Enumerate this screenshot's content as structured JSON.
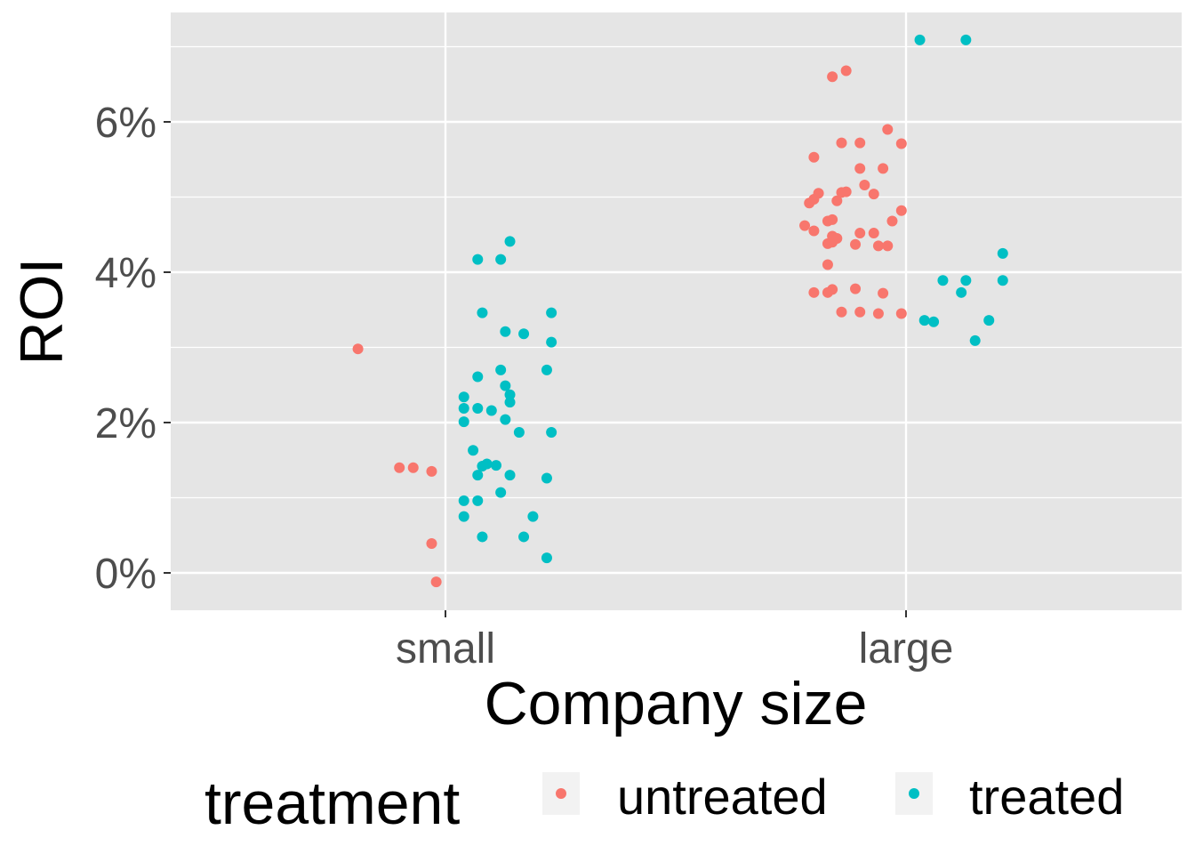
{
  "chart_data": {
    "type": "scatter",
    "title": "",
    "xlabel": "Company size",
    "ylabel": "ROI",
    "categories": [
      "small",
      "large"
    ],
    "ylim": [
      -0.5,
      7.4
    ],
    "y_ticks": [
      0,
      2,
      4,
      6
    ],
    "y_tick_labels": [
      "0%",
      "2%",
      "4%",
      "6%"
    ],
    "grid": true,
    "legend_position": "bottom",
    "legend": {
      "title": "treatment",
      "entries": [
        "untreated",
        "treated"
      ]
    },
    "colors": {
      "untreated": "#f8766d",
      "treated": "#00bfc4",
      "panel": "#e5e5e5",
      "grid": "#ffffff"
    },
    "series": [
      {
        "name": "untreated",
        "points": [
          [
            "small",
            -0.19,
            2.98
          ],
          [
            "small",
            -0.1,
            1.4
          ],
          [
            "small",
            -0.07,
            1.4
          ],
          [
            "small",
            -0.03,
            1.35
          ],
          [
            "small",
            -0.03,
            0.39
          ],
          [
            "small",
            -0.02,
            -0.12
          ],
          [
            "large",
            -0.22,
            4.62
          ],
          [
            "large",
            -0.21,
            4.92
          ],
          [
            "large",
            -0.2,
            4.97
          ],
          [
            "large",
            -0.2,
            5.53
          ],
          [
            "large",
            -0.2,
            4.55
          ],
          [
            "large",
            -0.19,
            5.05
          ],
          [
            "large",
            -0.2,
            3.73
          ],
          [
            "large",
            -0.17,
            4.1
          ],
          [
            "large",
            -0.17,
            4.38
          ],
          [
            "large",
            -0.17,
            4.68
          ],
          [
            "large",
            -0.17,
            3.73
          ],
          [
            "large",
            -0.16,
            4.7
          ],
          [
            "large",
            -0.16,
            6.6
          ],
          [
            "large",
            -0.16,
            4.4
          ],
          [
            "large",
            -0.16,
            4.48
          ],
          [
            "large",
            -0.16,
            3.77
          ],
          [
            "large",
            -0.15,
            4.45
          ],
          [
            "large",
            -0.15,
            4.95
          ],
          [
            "large",
            -0.14,
            5.72
          ],
          [
            "large",
            -0.14,
            5.06
          ],
          [
            "large",
            -0.14,
            3.47
          ],
          [
            "large",
            -0.13,
            6.68
          ],
          [
            "large",
            -0.13,
            5.07
          ],
          [
            "large",
            -0.11,
            4.37
          ],
          [
            "large",
            -0.11,
            3.78
          ],
          [
            "large",
            -0.1,
            5.72
          ],
          [
            "large",
            -0.1,
            5.38
          ],
          [
            "large",
            -0.1,
            4.52
          ],
          [
            "large",
            -0.1,
            3.47
          ],
          [
            "large",
            -0.09,
            5.16
          ],
          [
            "large",
            -0.07,
            4.52
          ],
          [
            "large",
            -0.07,
            5.04
          ],
          [
            "large",
            -0.06,
            4.35
          ],
          [
            "large",
            -0.05,
            5.38
          ],
          [
            "large",
            -0.05,
            3.72
          ],
          [
            "large",
            -0.04,
            5.9
          ],
          [
            "large",
            -0.06,
            3.45
          ],
          [
            "large",
            -0.04,
            4.35
          ],
          [
            "large",
            -0.03,
            4.68
          ],
          [
            "large",
            -0.01,
            5.71
          ],
          [
            "large",
            -0.01,
            4.82
          ],
          [
            "large",
            -0.01,
            3.45
          ]
        ]
      },
      {
        "name": "treated",
        "points": [
          [
            "small",
            0.04,
            2.19
          ],
          [
            "small",
            0.04,
            2.01
          ],
          [
            "small",
            0.04,
            0.96
          ],
          [
            "small",
            0.04,
            0.75
          ],
          [
            "small",
            0.04,
            2.34
          ],
          [
            "small",
            0.06,
            1.63
          ],
          [
            "small",
            0.07,
            1.3
          ],
          [
            "small",
            0.07,
            0.96
          ],
          [
            "small",
            0.07,
            2.61
          ],
          [
            "small",
            0.07,
            4.17
          ],
          [
            "small",
            0.07,
            2.19
          ],
          [
            "small",
            0.08,
            3.46
          ],
          [
            "small",
            0.08,
            1.42
          ],
          [
            "small",
            0.08,
            0.48
          ],
          [
            "small",
            0.09,
            1.45
          ],
          [
            "small",
            0.1,
            2.16
          ],
          [
            "small",
            0.11,
            1.43
          ],
          [
            "small",
            0.12,
            2.7
          ],
          [
            "small",
            0.12,
            4.17
          ],
          [
            "small",
            0.12,
            1.07
          ],
          [
            "small",
            0.13,
            3.21
          ],
          [
            "small",
            0.13,
            2.49
          ],
          [
            "small",
            0.13,
            2.04
          ],
          [
            "small",
            0.14,
            4.41
          ],
          [
            "small",
            0.14,
            2.37
          ],
          [
            "small",
            0.14,
            2.27
          ],
          [
            "small",
            0.14,
            1.3
          ],
          [
            "small",
            0.16,
            1.87
          ],
          [
            "small",
            0.17,
            3.18
          ],
          [
            "small",
            0.17,
            0.48
          ],
          [
            "small",
            0.19,
            0.75
          ],
          [
            "small",
            0.22,
            2.7
          ],
          [
            "small",
            0.22,
            1.26
          ],
          [
            "small",
            0.22,
            0.2
          ],
          [
            "small",
            0.23,
            3.46
          ],
          [
            "small",
            0.23,
            3.07
          ],
          [
            "small",
            0.23,
            1.87
          ],
          [
            "large",
            0.03,
            7.09
          ],
          [
            "large",
            0.04,
            3.36
          ],
          [
            "large",
            0.06,
            3.34
          ],
          [
            "large",
            0.08,
            3.89
          ],
          [
            "large",
            0.12,
            3.73
          ],
          [
            "large",
            0.13,
            3.89
          ],
          [
            "large",
            0.13,
            7.09
          ],
          [
            "large",
            0.15,
            3.09
          ],
          [
            "large",
            0.18,
            3.36
          ],
          [
            "large",
            0.21,
            3.89
          ],
          [
            "large",
            0.21,
            4.25
          ]
        ]
      }
    ]
  }
}
